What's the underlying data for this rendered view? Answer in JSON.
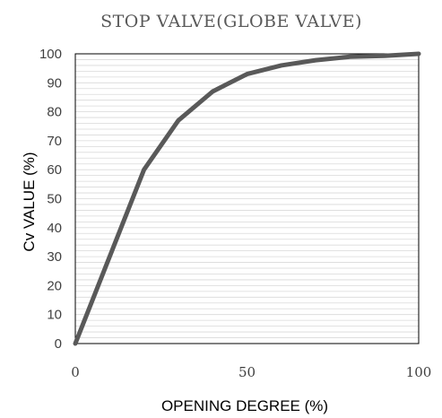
{
  "chart_data": {
    "type": "line",
    "title": "STOP VALVE(GLOBE VALVE)",
    "xlabel": "OPENING DEGREE (%)",
    "ylabel": "Cv VALUE (%)",
    "xlim": [
      0,
      100
    ],
    "ylim": [
      0,
      100
    ],
    "x_ticks": [
      "0",
      "50",
      "100"
    ],
    "y_ticks": [
      "0",
      "10",
      "20",
      "30",
      "40",
      "50",
      "60",
      "70",
      "80",
      "90",
      "100"
    ],
    "grid": "horizontal",
    "minor_grid_step": 2,
    "legend": "none",
    "series": [
      {
        "x": [
          0,
          20,
          30,
          40,
          50,
          60,
          70,
          80,
          90,
          100
        ],
        "y": [
          0,
          60,
          77,
          87,
          93,
          96,
          97.8,
          99,
          99.3,
          100
        ],
        "color": "#595959"
      }
    ]
  }
}
